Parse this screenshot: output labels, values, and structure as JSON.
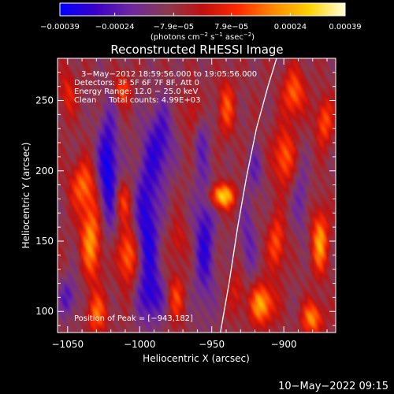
{
  "chart_data": {
    "type": "heatmap",
    "title": "Reconstructed RHESSI Image",
    "xlabel": "Heliocentric X (arcsec)",
    "ylabel": "Heliocentric Y (arcsec)",
    "xlim": [
      -1057,
      -864
    ],
    "ylim": [
      85,
      280
    ],
    "xticks": [
      -1050,
      -1000,
      -950,
      -900
    ],
    "xtick_labels": [
      "−1050",
      "−1000",
      "−950",
      "−900"
    ],
    "yticks": [
      100,
      150,
      200,
      250
    ],
    "ytick_labels": [
      "100",
      "150",
      "200",
      "250"
    ],
    "colorbar": {
      "range": [
        -0.00039,
        0.00039
      ],
      "ticks": [
        -0.00039,
        -0.00024,
        -7.9e-05,
        7.9e-05,
        0.00024,
        0.00039
      ],
      "tick_labels": [
        "−0.00039",
        "−0.00024",
        "−7.9e−05",
        "7.9e−05",
        "0.00024",
        "0.00039"
      ],
      "unit_parts": [
        "(photons cm",
        "−2",
        " s",
        "−1",
        " asec",
        "−2",
        ")"
      ],
      "stops": [
        "#0000ff",
        "#3a00c8",
        "#6e28a0",
        "#8a3a50",
        "#c01010",
        "#ff2a00",
        "#ff8a00",
        "#ffd200",
        "#ffffd8"
      ]
    },
    "annotations": {
      "lines": [
        "3−May−2012 18:59:56.000 to 19:05:56.000",
        "Detectors: 3F 5F 6F 7F 8F, Att 0",
        "Energy Range: 12.0 − 25.0 keV",
        "Clean     Total counts: 4.99E+03"
      ],
      "peak": "Position of Peak = [−943,182]"
    },
    "peak_position": [
      -943,
      182
    ],
    "limb_curve": [
      [
        -944,
        85
      ],
      [
        -938,
        120
      ],
      [
        -932,
        160
      ],
      [
        -926,
        195
      ],
      [
        -919,
        230
      ],
      [
        -911,
        260
      ],
      [
        -905,
        280
      ]
    ],
    "blobs": [
      {
        "x": -1035,
        "y": 150,
        "sx": 6,
        "sy": 22,
        "v": 0.00035
      },
      {
        "x": -1040,
        "y": 190,
        "sx": 6,
        "sy": 12,
        "v": 0.00022
      },
      {
        "x": -1008,
        "y": 140,
        "sx": 5,
        "sy": 14,
        "v": 0.00028
      },
      {
        "x": -1012,
        "y": 178,
        "sx": 4,
        "sy": 10,
        "v": 0.00018
      },
      {
        "x": -1030,
        "y": 98,
        "sx": 5,
        "sy": 10,
        "v": 0.00022
      },
      {
        "x": -1050,
        "y": 255,
        "sx": 4,
        "sy": 12,
        "v": 0.00014
      },
      {
        "x": -1012,
        "y": 258,
        "sx": 4,
        "sy": 8,
        "v": 0.0002
      },
      {
        "x": -975,
        "y": 110,
        "sx": 4,
        "sy": 12,
        "v": 0.00018
      },
      {
        "x": -973,
        "y": 150,
        "sx": 4,
        "sy": 10,
        "v": 0.00012
      },
      {
        "x": -963,
        "y": 240,
        "sx": 4,
        "sy": 12,
        "v": 0.00014
      },
      {
        "x": -943,
        "y": 182,
        "sx": 6,
        "sy": 6,
        "v": 0.00039
      },
      {
        "x": -940,
        "y": 245,
        "sx": 4,
        "sy": 14,
        "v": 0.0002
      },
      {
        "x": -932,
        "y": 115,
        "sx": 4,
        "sy": 12,
        "v": 0.00012
      },
      {
        "x": -915,
        "y": 105,
        "sx": 6,
        "sy": 10,
        "v": 0.00032
      },
      {
        "x": -905,
        "y": 148,
        "sx": 4,
        "sy": 14,
        "v": 0.00022
      },
      {
        "x": -900,
        "y": 210,
        "sx": 5,
        "sy": 14,
        "v": 0.00024
      },
      {
        "x": -893,
        "y": 255,
        "sx": 5,
        "sy": 12,
        "v": 0.00025
      },
      {
        "x": -875,
        "y": 150,
        "sx": 4,
        "sy": 16,
        "v": 0.0003
      },
      {
        "x": -872,
        "y": 235,
        "sx": 4,
        "sy": 12,
        "v": 0.00022
      },
      {
        "x": -880,
        "y": 95,
        "sx": 5,
        "sy": 8,
        "v": 0.00028
      },
      {
        "x": -1040,
        "y": 140,
        "sx": 5,
        "sy": 28,
        "v": -0.00012
      },
      {
        "x": -1022,
        "y": 200,
        "sx": 5,
        "sy": 30,
        "v": -0.0003
      },
      {
        "x": -995,
        "y": 160,
        "sx": 6,
        "sy": 40,
        "v": -0.00026
      },
      {
        "x": -985,
        "y": 220,
        "sx": 6,
        "sy": 20,
        "v": -0.0002
      },
      {
        "x": -990,
        "y": 110,
        "sx": 6,
        "sy": 12,
        "v": -0.00016
      },
      {
        "x": -955,
        "y": 150,
        "sx": 5,
        "sy": 35,
        "v": -0.00022
      },
      {
        "x": -958,
        "y": 225,
        "sx": 4,
        "sy": 15,
        "v": -0.00012
      },
      {
        "x": -925,
        "y": 150,
        "sx": 4,
        "sy": 22,
        "v": -0.00014
      },
      {
        "x": -920,
        "y": 200,
        "sx": 4,
        "sy": 12,
        "v": -0.00012
      },
      {
        "x": -888,
        "y": 180,
        "sx": 4,
        "sy": 20,
        "v": -0.00012
      },
      {
        "x": -1050,
        "y": 110,
        "sx": 4,
        "sy": 10,
        "v": -0.00016
      }
    ]
  },
  "footer": {
    "timestamp": "10−May−2022 09:15"
  }
}
